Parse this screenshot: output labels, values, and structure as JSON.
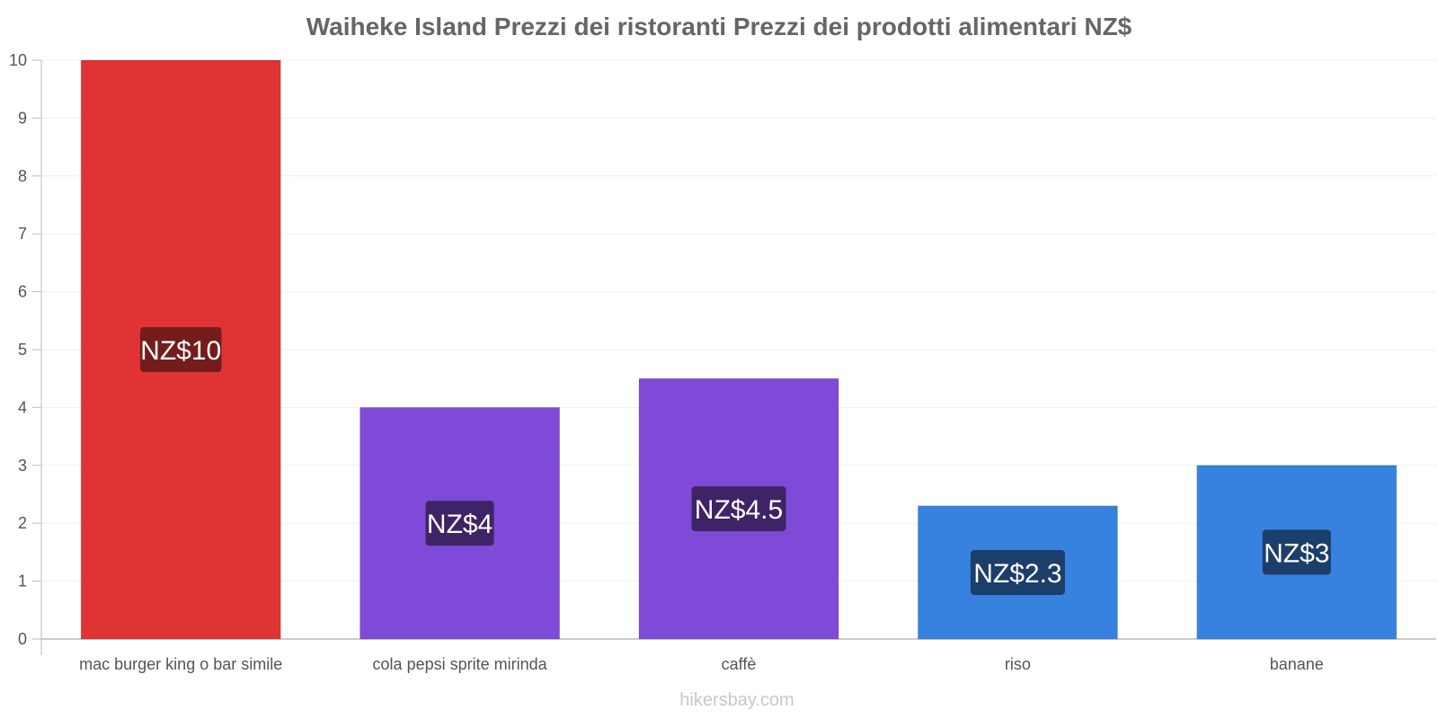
{
  "chart_data": {
    "type": "bar",
    "title": "Waiheke Island Prezzi dei ristoranti Prezzi dei prodotti alimentari NZ$",
    "categories": [
      "mac burger king o bar simile",
      "cola pepsi sprite mirinda",
      "caffè",
      "riso",
      "banane"
    ],
    "values": [
      10,
      4,
      4.5,
      2.3,
      3
    ],
    "value_labels": [
      "NZ$10",
      "NZ$4",
      "NZ$4.5",
      "NZ$2.3",
      "NZ$3"
    ],
    "bar_colors": [
      "#e03434",
      "#7f4ad8",
      "#7f4ad8",
      "#3682de",
      "#3682de"
    ],
    "label_box_colors": [
      "#741c1c",
      "#3e2466",
      "#3e2466",
      "#1c3e6a",
      "#1c3e6a"
    ],
    "yticks": [
      0,
      1,
      2,
      3,
      4,
      5,
      6,
      7,
      8,
      9,
      10
    ],
    "ylim": [
      0,
      10
    ],
    "xlabel": "",
    "ylabel": "",
    "grid": true
  },
  "watermark": "hikersbay.com"
}
